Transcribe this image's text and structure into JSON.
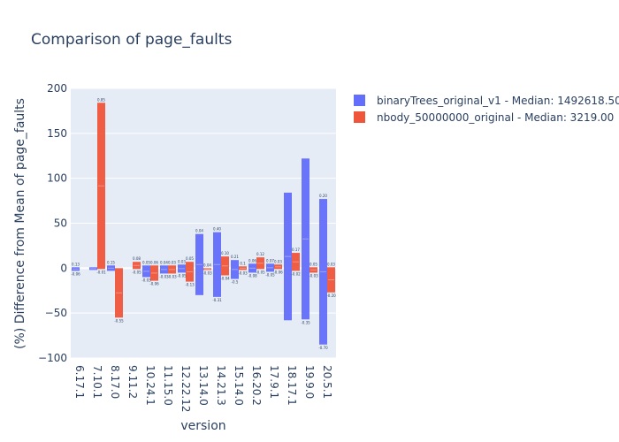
{
  "chart_data": {
    "type": "bar",
    "title": "Comparison of page_faults",
    "xlabel": "version",
    "ylabel": "(%) Difference from Mean of page_faults",
    "ylim": [
      -100,
      200
    ],
    "yticks": [
      -100,
      -50,
      0,
      50,
      100,
      150,
      200
    ],
    "legend_position": "top-right",
    "colors": {
      "plot_bg": "#e5ecf6",
      "series_1": "#636efa",
      "series_2": "#ef553b",
      "grid": "#ffffff",
      "text": "#2a3f5f"
    },
    "categories": [
      "6.17.1",
      "7.10.1",
      "8.17.0",
      "9.11.2",
      "10.24.1",
      "11.15.0",
      "12.22.12",
      "13.14.0",
      "14.21.3",
      "15.14.0",
      "16.20.2",
      "17.9.1",
      "18.17.1",
      "19.9.0",
      "20.5.1"
    ],
    "series": [
      {
        "name": "binaryTrees_original_v1 - Median: 1492618.50",
        "ranges": [
          [
            -3,
            1
          ],
          [
            -2,
            1
          ],
          [
            -3,
            3
          ],
          [
            null,
            null
          ],
          [
            -10,
            3
          ],
          [
            -6,
            3
          ],
          [
            -5,
            4
          ],
          [
            -30,
            38
          ],
          [
            -32,
            40
          ],
          [
            -12,
            9
          ],
          [
            -5,
            5
          ],
          [
            -4,
            5
          ],
          [
            -58,
            84
          ],
          [
            -57,
            122
          ],
          [
            -85,
            77
          ]
        ],
        "max_labels": [
          "0.13",
          "",
          "0.15",
          "",
          "0.05",
          "0.04",
          "0.03",
          "0.04",
          "0.40",
          "0.21",
          "0.06",
          "0.07",
          "",
          "",
          "0.20"
        ],
        "min_labels": [
          "-0.06",
          "",
          "",
          "",
          "-0.03",
          "-0.03",
          "-0.05",
          "",
          "-0.31",
          "-0.5",
          "-0.08",
          "-0.05",
          "",
          "-0.35",
          "-0.70"
        ]
      },
      {
        "name": "nbody_50000000_original - Median: 3219.00",
        "ranges": [
          [
            null,
            null
          ],
          [
            -1,
            184
          ],
          [
            -55,
            0
          ],
          [
            -1,
            7
          ],
          [
            -14,
            3
          ],
          [
            -6,
            3
          ],
          [
            -15,
            7
          ],
          [
            -2,
            0
          ],
          [
            -8,
            13
          ],
          [
            -2,
            2
          ],
          [
            -1,
            12
          ],
          [
            -1,
            4
          ],
          [
            -3,
            17
          ],
          [
            -5,
            1
          ],
          [
            -27,
            1
          ]
        ],
        "max_labels": [
          "",
          "0.85",
          "",
          "0.08",
          "0.06",
          "0.03",
          "0.05",
          "0.04",
          "0.10",
          "0.1",
          "0.12",
          "0.03",
          "0.17",
          "0.05",
          "0.03"
        ],
        "min_labels": [
          "",
          "-0.01",
          "-0.55",
          "-0.05",
          "-0.06",
          "-0.03",
          "-0.13",
          "-0.03",
          "-0.04",
          "-0.03",
          "-0.05",
          "-0.06",
          "-0.02",
          "-0.03",
          "-0.20"
        ]
      }
    ]
  }
}
